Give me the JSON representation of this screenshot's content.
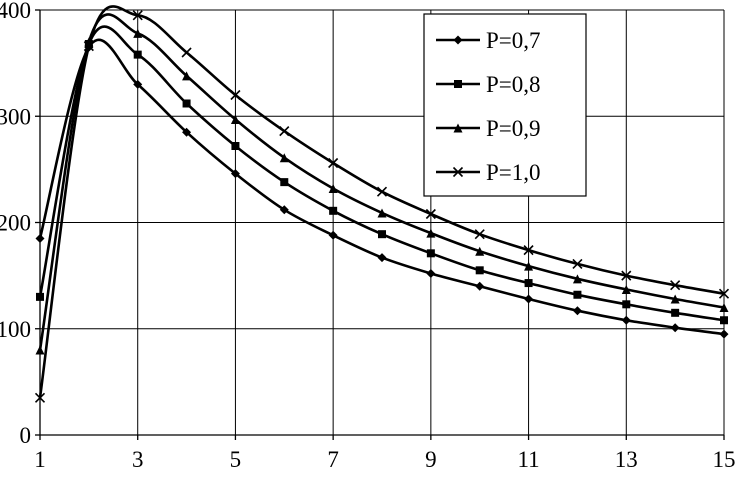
{
  "chart_data": {
    "type": "line",
    "title": "",
    "xlabel": "",
    "ylabel": "",
    "x": [
      1,
      2,
      3,
      4,
      5,
      6,
      7,
      8,
      9,
      10,
      11,
      12,
      13,
      14,
      15
    ],
    "series": [
      {
        "name": "P=0,7",
        "marker": "diamond",
        "values": [
          185,
          365,
          330,
          285,
          246,
          212,
          188,
          167,
          152,
          140,
          128,
          117,
          108,
          101,
          95
        ]
      },
      {
        "name": "P=0,8",
        "marker": "square",
        "values": [
          130,
          368,
          358,
          312,
          272,
          238,
          211,
          189,
          171,
          155,
          143,
          132,
          123,
          115,
          108
        ]
      },
      {
        "name": "P=0,9",
        "marker": "triangle",
        "values": [
          80,
          370,
          378,
          338,
          297,
          261,
          232,
          209,
          190,
          173,
          159,
          147,
          137,
          128,
          120
        ]
      },
      {
        "name": "P=1,0",
        "marker": "x",
        "values": [
          35,
          366,
          395,
          360,
          320,
          286,
          256,
          229,
          208,
          189,
          174,
          161,
          150,
          141,
          133
        ]
      }
    ],
    "xticks": [
      1,
      3,
      5,
      7,
      9,
      11,
      13,
      15
    ],
    "yticks": [
      0,
      100,
      200,
      300,
      400
    ],
    "xlim": [
      1,
      15
    ],
    "ylim": [
      0,
      400
    ],
    "grid": true,
    "legend_position": "top-right",
    "line_color": "#000000",
    "grid_color": "#000000",
    "background": "#ffffff"
  }
}
